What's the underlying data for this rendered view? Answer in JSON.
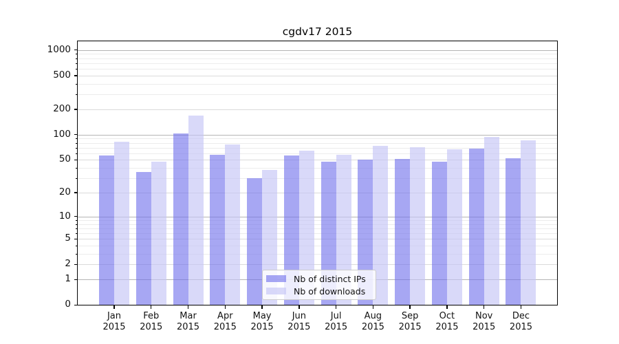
{
  "title": "cgdv17 2015",
  "chart_data": {
    "type": "bar",
    "title": "cgdv17 2015",
    "categories": [
      "Jan",
      "Feb",
      "Mar",
      "Apr",
      "May",
      "Jun",
      "Jul",
      "Aug",
      "Sep",
      "Oct",
      "Nov",
      "Dec"
    ],
    "category_year": "2015",
    "series": [
      {
        "name": "Nb of distinct IPs",
        "color": "rgba(113,113,235,0.62)",
        "values": [
          57,
          36,
          104,
          58,
          30,
          57,
          48,
          50,
          51,
          48,
          68,
          52
        ]
      },
      {
        "name": "Nb of downloads",
        "color": "rgba(197,197,246,0.65)",
        "values": [
          82,
          48,
          170,
          77,
          38,
          65,
          58,
          74,
          71,
          67,
          95,
          85
        ]
      }
    ],
    "xlabel": "",
    "ylabel": "",
    "yscale": "log1p",
    "ylim": [
      0,
      1268
    ],
    "yticks": [
      0,
      1,
      2,
      5,
      10,
      20,
      50,
      100,
      200,
      500,
      1000
    ],
    "grid": {
      "major_lines": [
        1,
        10,
        100,
        1000
      ],
      "labeled_lines": [
        2,
        5,
        20,
        50,
        200,
        500
      ],
      "minor_lines": [
        3,
        4,
        6,
        7,
        8,
        9,
        30,
        40,
        60,
        70,
        80,
        90,
        300,
        400,
        600,
        700,
        800,
        900
      ]
    },
    "legend_position": "lower center"
  }
}
